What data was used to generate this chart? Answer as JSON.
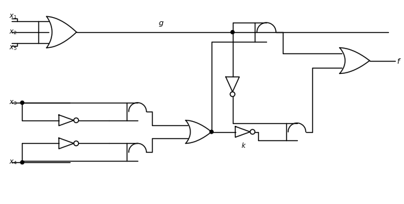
{
  "bg_color": "#ffffff",
  "line_color": "#000000",
  "lw": 1.0,
  "fig_w": 5.9,
  "fig_h": 2.98,
  "dpi": 100
}
